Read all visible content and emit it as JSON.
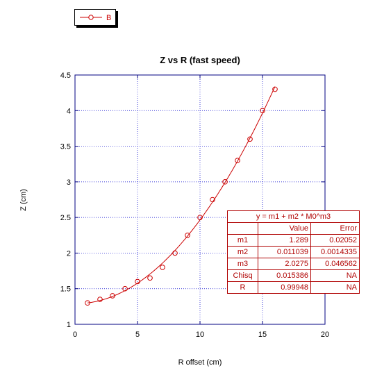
{
  "chart_data": {
    "type": "scatter",
    "title": "Z vs R (fast speed)",
    "xlabel": "R offset (cm)",
    "ylabel": "Z (cm)",
    "xlim": [
      0,
      20
    ],
    "ylim": [
      1,
      4.5
    ],
    "xticks": [
      "0",
      "5",
      "10",
      "15",
      "20"
    ],
    "yticks": [
      "1",
      "1.5",
      "2",
      "2.5",
      "3",
      "3.5",
      "4",
      "4.5"
    ],
    "grid": true,
    "legend_position": "top-left",
    "series": [
      {
        "name": "B",
        "color": "#cc0000",
        "marker": "circle",
        "x": [
          1,
          2,
          3,
          4,
          5,
          6,
          7,
          8,
          9,
          10,
          11,
          12,
          13,
          14,
          15,
          16
        ],
        "y": [
          1.3,
          1.35,
          1.4,
          1.5,
          1.6,
          1.65,
          1.8,
          2.0,
          2.25,
          2.5,
          2.75,
          3.0,
          3.3,
          3.6,
          4.0,
          4.3
        ]
      }
    ],
    "fit": {
      "equation": "y = m1 + m2 * M0^m3",
      "m1": 1.289,
      "m2": 0.011039,
      "m3": 2.0275,
      "x_range": [
        1,
        16
      ]
    }
  },
  "fit_table": {
    "equation": "y = m1 + m2 * M0^m3",
    "headers": [
      "",
      "Value",
      "Error"
    ],
    "rows": [
      [
        "m1",
        "1.289",
        "0.02052"
      ],
      [
        "m2",
        "0.011039",
        "0.0014335"
      ],
      [
        "m3",
        "2.0275",
        "0.046562"
      ],
      [
        "Chisq",
        "0.015386",
        "NA"
      ],
      [
        "R",
        "0.99948",
        "NA"
      ]
    ]
  },
  "colors": {
    "axis": "#000080",
    "grid": "#0000cc",
    "series": "#cc0000"
  }
}
